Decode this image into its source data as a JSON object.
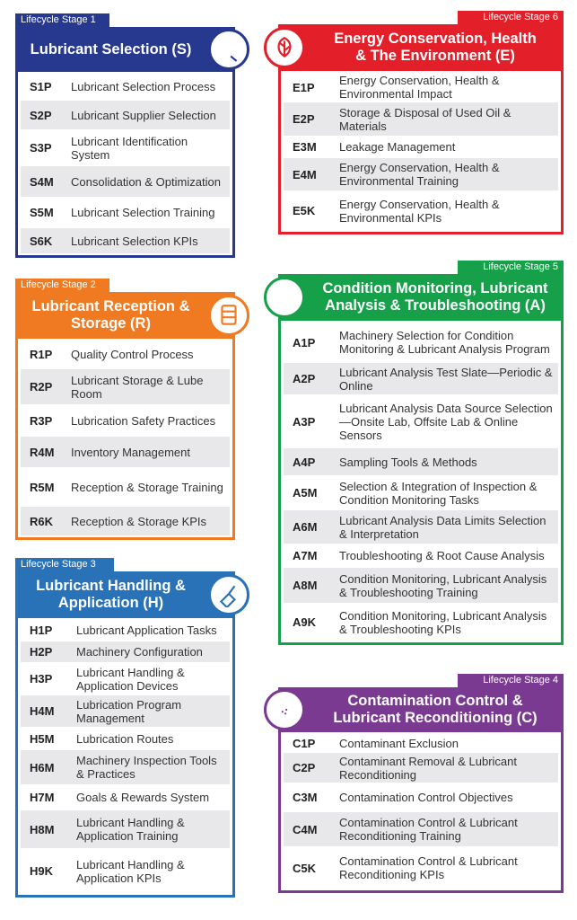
{
  "stages": [
    {
      "stage": "Lifecycle Stage 1",
      "title": "Lubricant Selection (S)",
      "rows": [
        {
          "code": "S1P",
          "text": "Lubricant Selection Process"
        },
        {
          "code": "S2P",
          "text": "Lubricant Supplier Selection"
        },
        {
          "code": "S3P",
          "text": "Lubricant Identification System"
        },
        {
          "code": "S4M",
          "text": "Consolidation & Optimization"
        },
        {
          "code": "S5M",
          "text": "Lubricant Selection Training"
        },
        {
          "code": "S6K",
          "text": "Lubricant Selection KPIs"
        }
      ]
    },
    {
      "stage": "Lifecycle Stage 2",
      "title": "Lubricant Reception & Storage (R)",
      "rows": [
        {
          "code": "R1P",
          "text": "Quality Control Process"
        },
        {
          "code": "R2P",
          "text": "Lubricant Storage & Lube Room"
        },
        {
          "code": "R3P",
          "text": "Lubrication Safety Practices"
        },
        {
          "code": "R4M",
          "text": "Inventory Management"
        },
        {
          "code": "R5M",
          "text": "Reception & Storage Training"
        },
        {
          "code": "R6K",
          "text": "Reception & Storage KPIs"
        }
      ]
    },
    {
      "stage": "Lifecycle Stage 3",
      "title": "Lubricant Handling & Application (H)",
      "rows": [
        {
          "code": "H1P",
          "text": "Lubricant Application Tasks"
        },
        {
          "code": "H2P",
          "text": "Machinery Configuration"
        },
        {
          "code": "H3P",
          "text": "Lubricant Handling & Application Devices"
        },
        {
          "code": "H4M",
          "text": "Lubrication Program Management"
        },
        {
          "code": "H5M",
          "text": "Lubrication Routes"
        },
        {
          "code": "H6M",
          "text": "Machinery Inspection Tools & Practices"
        },
        {
          "code": "H7M",
          "text": "Goals & Rewards System"
        },
        {
          "code": "H8M",
          "text": "Lubricant Handling & Application Training"
        },
        {
          "code": "H9K",
          "text": "Lubricant Handling & Application KPIs"
        }
      ]
    },
    {
      "stage": "Lifecycle Stage 6",
      "title": "Energy Conservation, Health & The Environment (E)",
      "rows": [
        {
          "code": "E1P",
          "text": "Energy Conservation, Health & Environmental Impact"
        },
        {
          "code": "E2P",
          "text": "Storage & Disposal of Used Oil & Materials"
        },
        {
          "code": "E3M",
          "text": "Leakage Management"
        },
        {
          "code": "E4M",
          "text": "Energy Conservation, Health & Environmental Training"
        },
        {
          "code": "E5K",
          "text": "Energy Conservation, Health & Environmental KPIs"
        }
      ]
    },
    {
      "stage": "Lifecycle Stage 5",
      "title": "Condition Monitoring, Lubricant Analysis & Troubleshooting (A)",
      "rows": [
        {
          "code": "A1P",
          "text": "Machinery Selection for Condition Monitoring & Lubricant Analysis Program"
        },
        {
          "code": "A2P",
          "text": "Lubricant Analysis Test Slate—Periodic & Online"
        },
        {
          "code": "A3P",
          "text": "Lubricant Analysis Data Source Selection—Onsite Lab, Offsite Lab & Online Sensors"
        },
        {
          "code": "A4P",
          "text": "Sampling Tools & Methods"
        },
        {
          "code": "A5M",
          "text": "Selection & Integration of Inspection & Condition Monitoring Tasks"
        },
        {
          "code": "A6M",
          "text": "Lubricant Analysis Data Limits Selection & Interpretation"
        },
        {
          "code": "A7M",
          "text": "Troubleshooting & Root Cause Analysis"
        },
        {
          "code": "A8M",
          "text": "Condition Monitoring, Lubricant Analysis & Troubleshooting Training"
        },
        {
          "code": "A9K",
          "text": "Condition Monitoring, Lubricant Analysis & Troubleshooting KPIs"
        }
      ]
    },
    {
      "stage": "Lifecycle Stage 4",
      "title": "Contamination Control & Lubricant Reconditioning (C)",
      "rows": [
        {
          "code": "C1P",
          "text": "Contaminant Exclusion"
        },
        {
          "code": "C2P",
          "text": "Contaminant Removal & Lubricant Reconditioning"
        },
        {
          "code": "C3M",
          "text": "Contamination Control Objectives"
        },
        {
          "code": "C4M",
          "text": "Contamination Control & Lubricant Reconditioning Training"
        },
        {
          "code": "C5K",
          "text": "Contamination Control & Lubricant Reconditioning KPIs"
        }
      ]
    }
  ]
}
